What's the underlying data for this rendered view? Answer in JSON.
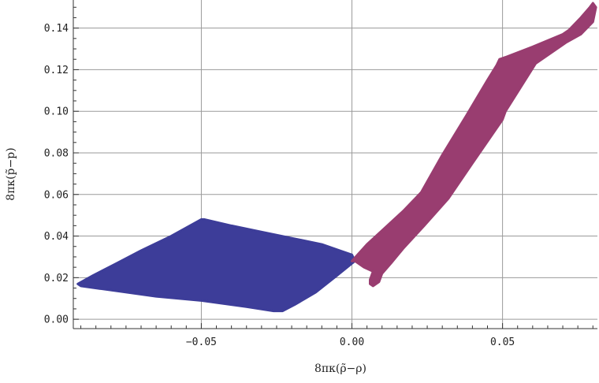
{
  "chart_data": {
    "type": "area",
    "xlabel": "8πκ(ρ̃−ρ)",
    "ylabel": "8πκ(p̃−p)",
    "xlim": [
      -0.0925,
      0.0815
    ],
    "ylim": [
      -0.0045,
      0.1535
    ],
    "grid": true,
    "x_ticks": [
      -0.05,
      0.0,
      0.05
    ],
    "x_tick_labels": [
      "−0.05",
      "0.00",
      "0.05"
    ],
    "y_ticks": [
      0.0,
      0.02,
      0.04,
      0.06,
      0.08,
      0.1,
      0.12,
      0.14
    ],
    "y_tick_labels": [
      "0.00",
      "0.02",
      "0.04",
      "0.06",
      "0.08",
      "0.10",
      "0.12",
      "0.14"
    ],
    "colors": {
      "blue": "#3d3d99",
      "magenta": "#993d70",
      "grid": "#9a9a9a",
      "axis": "#333333"
    },
    "series": [
      {
        "color": "#3d3d99",
        "polygon": [
          [
            -0.091,
            0.017
          ],
          [
            -0.086,
            0.021
          ],
          [
            -0.078,
            0.027
          ],
          [
            -0.07,
            0.033
          ],
          [
            -0.06,
            0.04
          ],
          [
            -0.05,
            0.048
          ],
          [
            -0.049,
            0.048
          ],
          [
            -0.04,
            0.045
          ],
          [
            -0.03,
            0.042
          ],
          [
            -0.02,
            0.039
          ],
          [
            -0.01,
            0.036
          ],
          [
            -0.004,
            0.033
          ],
          [
            0.0,
            0.031
          ],
          [
            0.001,
            0.028
          ],
          [
            -0.005,
            0.021
          ],
          [
            -0.012,
            0.013
          ],
          [
            -0.019,
            0.007
          ],
          [
            -0.023,
            0.004
          ],
          [
            -0.026,
            0.004
          ],
          [
            -0.035,
            0.006
          ],
          [
            -0.05,
            0.009
          ],
          [
            -0.065,
            0.011
          ],
          [
            -0.08,
            0.014
          ],
          [
            -0.09,
            0.016
          ]
        ]
      },
      {
        "color": "#993d70",
        "polygon": [
          [
            0.0,
            0.028
          ],
          [
            0.005,
            0.036
          ],
          [
            0.011,
            0.044
          ],
          [
            0.017,
            0.052
          ],
          [
            0.021,
            0.058
          ],
          [
            0.023,
            0.061
          ],
          [
            0.03,
            0.079
          ],
          [
            0.038,
            0.098
          ],
          [
            0.045,
            0.115
          ],
          [
            0.048,
            0.122
          ],
          [
            0.049,
            0.125
          ],
          [
            0.051,
            0.126
          ],
          [
            0.06,
            0.131
          ],
          [
            0.07,
            0.137
          ],
          [
            0.072,
            0.139
          ],
          [
            0.076,
            0.145
          ],
          [
            0.079,
            0.15
          ],
          [
            0.08,
            0.152
          ],
          [
            0.081,
            0.15
          ],
          [
            0.08,
            0.143
          ],
          [
            0.076,
            0.137
          ],
          [
            0.071,
            0.133
          ],
          [
            0.061,
            0.123
          ],
          [
            0.051,
            0.1
          ],
          [
            0.05,
            0.096
          ],
          [
            0.04,
            0.075
          ],
          [
            0.032,
            0.058
          ],
          [
            0.024,
            0.045
          ],
          [
            0.017,
            0.034
          ],
          [
            0.013,
            0.027
          ],
          [
            0.01,
            0.022
          ],
          [
            0.009,
            0.018
          ],
          [
            0.007,
            0.016
          ],
          [
            0.006,
            0.017
          ],
          [
            0.006,
            0.019
          ],
          [
            0.007,
            0.023
          ],
          [
            0.004,
            0.025
          ],
          [
            0.001,
            0.028
          ]
        ]
      }
    ]
  }
}
